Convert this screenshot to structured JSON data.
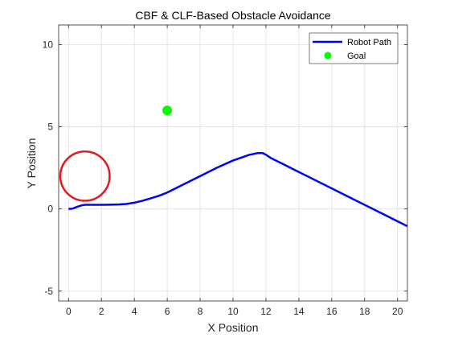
{
  "chart_data": {
    "type": "line",
    "title": "CBF & CLF-Based Obstacle Avoidance",
    "xlabel": "X Position",
    "ylabel": "Y Position",
    "xlim": [
      -0.6,
      20.6
    ],
    "ylim": [
      -5.6,
      11.2
    ],
    "xticks": [
      0,
      2,
      4,
      6,
      8,
      10,
      12,
      14,
      16,
      18,
      20
    ],
    "yticks": [
      -5,
      0,
      5,
      10
    ],
    "grid": true,
    "legend_position": "top-right",
    "series": [
      {
        "name": "Robot Path",
        "kind": "line",
        "color": "#0000ff",
        "x": [
          0,
          0.25,
          0.5,
          0.8,
          1.0,
          1.5,
          2.0,
          2.5,
          3.0,
          3.5,
          4.0,
          4.5,
          5.0,
          5.5,
          6.0,
          7.0,
          8.0,
          9.0,
          10.0,
          11.0,
          11.5,
          11.8,
          12.0,
          12.3,
          13.0,
          14.0,
          15.0,
          16.0,
          17.0,
          18.0,
          19.0,
          20.0,
          20.6
        ],
        "y": [
          0.0,
          0.02,
          0.12,
          0.22,
          0.25,
          0.25,
          0.25,
          0.26,
          0.27,
          0.3,
          0.38,
          0.5,
          0.65,
          0.8,
          1.0,
          1.5,
          2.0,
          2.5,
          2.95,
          3.3,
          3.4,
          3.4,
          3.3,
          3.1,
          2.75,
          2.25,
          1.75,
          1.25,
          0.75,
          0.25,
          -0.25,
          -0.75,
          -1.05
        ]
      },
      {
        "name": "Goal",
        "kind": "point",
        "color": "#00ff00",
        "x": [
          6
        ],
        "y": [
          6
        ]
      }
    ],
    "obstacle": {
      "center": [
        1.0,
        2.0
      ],
      "radius": 1.5,
      "color": "#e41a1c"
    }
  }
}
